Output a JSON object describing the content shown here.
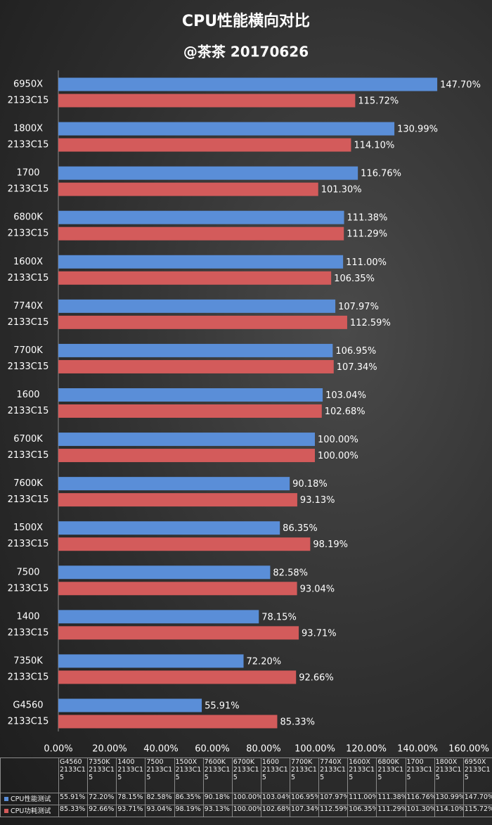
{
  "chart_data": {
    "type": "bar",
    "orientation": "horizontal",
    "title": "CPU性能横向对比",
    "subtitle": "@茶茶 20170626",
    "categories": [
      [
        "G4560",
        "2133C15"
      ],
      [
        "7350K",
        "2133C15"
      ],
      [
        "1400",
        "2133C15"
      ],
      [
        "7500",
        "2133C15"
      ],
      [
        "1500X",
        "2133C15"
      ],
      [
        "7600K",
        "2133C15"
      ],
      [
        "6700K",
        "2133C15"
      ],
      [
        "1600",
        "2133C15"
      ],
      [
        "7700K",
        "2133C15"
      ],
      [
        "7740X",
        "2133C15"
      ],
      [
        "1600X",
        "2133C15"
      ],
      [
        "6800K",
        "2133C15"
      ],
      [
        "1700",
        "2133C15"
      ],
      [
        "1800X",
        "2133C15"
      ],
      [
        "6950X",
        "2133C15"
      ]
    ],
    "series": [
      {
        "name": "CPU性能测试",
        "color": "#5a8ed8",
        "values": [
          55.91,
          72.2,
          78.15,
          82.58,
          86.35,
          90.18,
          100.0,
          103.04,
          106.95,
          107.97,
          111.0,
          111.38,
          116.76,
          130.99,
          147.7
        ],
        "value_labels": [
          "55.91%",
          "72.20%",
          "78.15%",
          "82.58%",
          "86.35%",
          "90.18%",
          "100.00%",
          "103.04%",
          "106.95%",
          "107.97%",
          "111.00%",
          "111.38%",
          "116.76%",
          "130.99%",
          "147.70%"
        ]
      },
      {
        "name": "CPU功耗测试",
        "color": "#d35b5b",
        "values": [
          85.33,
          92.66,
          93.71,
          93.04,
          98.19,
          93.13,
          100.0,
          102.68,
          107.34,
          112.59,
          106.35,
          111.29,
          101.3,
          114.1,
          115.72
        ],
        "value_labels": [
          "85.33%",
          "92.66%",
          "93.71%",
          "93.04%",
          "98.19%",
          "93.13%",
          "100.00%",
          "102.68%",
          "107.34%",
          "112.59%",
          "106.35%",
          "111.29%",
          "101.30%",
          "114.10%",
          "115.72%"
        ]
      }
    ],
    "xlim": [
      0,
      160
    ],
    "xticks": [
      {
        "value": 0,
        "label": "0.00%"
      },
      {
        "value": 20,
        "label": "20.00%"
      },
      {
        "value": 40,
        "label": "40.00%"
      },
      {
        "value": 60,
        "label": "60.00%"
      },
      {
        "value": 80,
        "label": "80.00%"
      },
      {
        "value": 100,
        "label": "100.00%"
      },
      {
        "value": 120,
        "label": "120.00%"
      },
      {
        "value": 140,
        "label": "140.00%"
      },
      {
        "value": 160,
        "label": "160.00%"
      }
    ],
    "grid": false,
    "data_table": true
  }
}
